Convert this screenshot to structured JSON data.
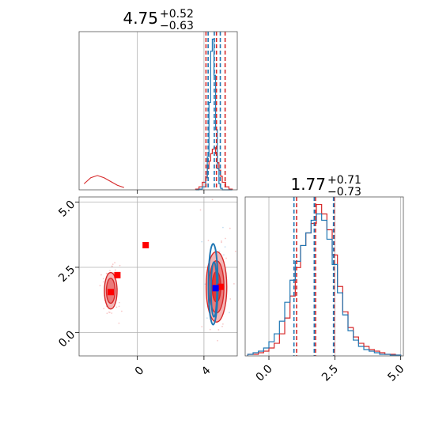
{
  "colors": {
    "red": "#d62728",
    "blue": "#1f77b4",
    "red_fill_outer": "#f4b6b6",
    "red_fill_mid": "#ea7a7a",
    "red_fill_inner": "#df3a3a",
    "marker_red": "#ff0000",
    "marker_blue": "#0000ff",
    "grid": "#b0b0b0"
  },
  "chart_data": [
    {
      "type": "histogram",
      "panel": "top-left",
      "title_value": "4.75",
      "title_plus": "+0.52",
      "title_minus": "−0.63",
      "xlim": [
        -3.5,
        6.0
      ],
      "quantiles": {
        "red": [
          4.12,
          4.75,
          5.27
        ],
        "blue": [
          4.25,
          4.62,
          4.98
        ]
      },
      "bin_edges": [
        3.5,
        3.7,
        3.9,
        4.1,
        4.2,
        4.3,
        4.4,
        4.5,
        4.6,
        4.7,
        4.8,
        4.9,
        5.0,
        5.1,
        5.3,
        5.5,
        5.7
      ],
      "series": [
        {
          "color": "red",
          "values": [
            0.5,
            2,
            5,
            9,
            14,
            19,
            24,
            27,
            28,
            24,
            18,
            13,
            9,
            5,
            2,
            0.5
          ]
        },
        {
          "color": "blue",
          "values": [
            0,
            0.5,
            2,
            8,
            22,
            58,
            92,
            100,
            76,
            40,
            14,
            4,
            1,
            0,
            0,
            0
          ]
        }
      ],
      "red_tail": {
        "x": [
          -3.2,
          -2.8,
          -2.4,
          -2.0,
          -1.6,
          -1.2,
          -0.8
        ],
        "values": [
          0.8,
          1.6,
          1.9,
          1.6,
          1.1,
          0.6,
          0.3
        ]
      },
      "xticks": [
        0,
        4
      ],
      "grid": true
    },
    {
      "type": "histogram",
      "panel": "bottom-right",
      "title_value": "1.77",
      "title_plus": "+0.71",
      "title_minus": "−0.73",
      "xlim": [
        -0.9,
        5.1
      ],
      "quantiles": {
        "red": [
          1.05,
          1.77,
          2.48
        ],
        "blue": [
          0.95,
          1.72,
          2.45
        ]
      },
      "bin_edges": [
        -0.8,
        -0.6,
        -0.4,
        -0.2,
        0.0,
        0.2,
        0.4,
        0.6,
        0.8,
        1.0,
        1.2,
        1.4,
        1.6,
        1.8,
        2.0,
        2.2,
        2.4,
        2.6,
        2.8,
        3.0,
        3.2,
        3.4,
        3.6,
        3.8,
        4.0,
        4.2,
        4.4,
        4.6,
        4.8,
        5.0
      ],
      "series": [
        {
          "color": "red",
          "values": [
            1,
            1,
            2,
            3,
            5,
            8,
            14,
            24,
            38,
            56,
            70,
            78,
            84,
            96,
            90,
            80,
            64,
            44,
            28,
            18,
            12,
            8,
            6,
            4,
            3,
            2,
            1,
            1,
            0.5
          ]
        },
        {
          "color": "blue",
          "values": [
            1,
            2,
            3,
            5,
            9,
            14,
            22,
            34,
            48,
            60,
            70,
            78,
            86,
            90,
            86,
            74,
            58,
            40,
            26,
            16,
            10,
            6,
            4,
            3,
            2,
            1,
            1,
            0.5,
            0.5
          ]
        }
      ],
      "xticks": [
        "0.0",
        "2.5",
        "5.0"
      ],
      "xtick_values": [
        0.0,
        2.5,
        5.0
      ],
      "grid": true
    },
    {
      "type": "contour",
      "panel": "bottom-left",
      "xlim": [
        -3.5,
        6.0
      ],
      "ylim": [
        -0.9,
        5.2
      ],
      "xticks": [
        "0",
        "4"
      ],
      "xtick_values": [
        0,
        4
      ],
      "yticks": [
        "0.0",
        "2.5",
        "5.0"
      ],
      "ytick_values": [
        0.0,
        2.5,
        5.0
      ],
      "grid": true,
      "red_blobs": [
        {
          "cx": 4.75,
          "cy": 1.75,
          "levels": [
            [
              0.62,
              1.35
            ],
            [
              0.45,
              1.0
            ],
            [
              0.26,
              0.58
            ]
          ]
        },
        {
          "cx": -1.6,
          "cy": 1.6,
          "levels": [
            [
              0.38,
              0.7
            ],
            [
              0.26,
              0.48
            ]
          ]
        }
      ],
      "blue_contours": [
        {
          "cx": 4.55,
          "cy": 1.85,
          "rx": 0.28,
          "ry": 1.55
        },
        {
          "cx": 4.6,
          "cy": 1.65,
          "rx": 0.18,
          "ry": 1.05
        }
      ],
      "red_markers": [
        {
          "x": -1.2,
          "y": 2.2
        },
        {
          "x": 0.5,
          "y": 3.35
        },
        {
          "x": -1.6,
          "y": 1.55
        },
        {
          "x": 5.0,
          "y": 1.75
        }
      ],
      "blue_markers": [
        {
          "x": 4.7,
          "y": 1.7
        }
      ]
    }
  ]
}
